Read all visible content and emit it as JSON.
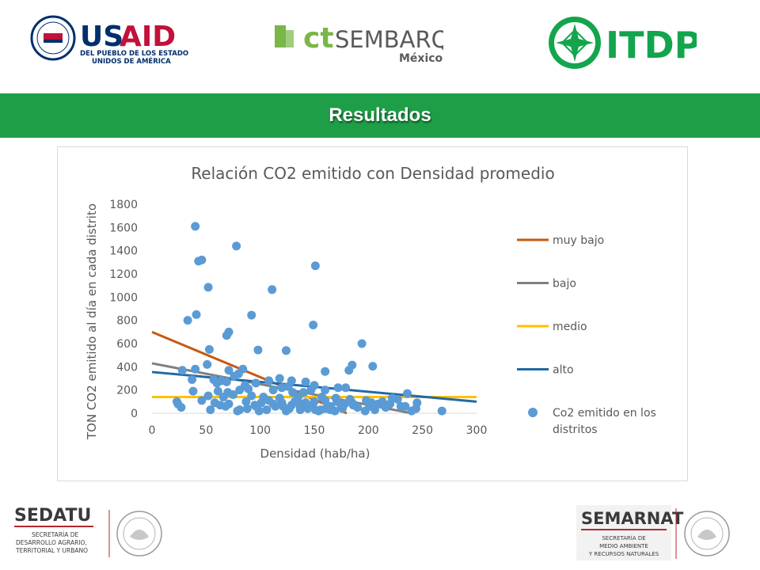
{
  "header": {
    "usaid": {
      "name": "USAID",
      "tagline_1": "DEL PUEBLO DE LOS ESTADOS",
      "tagline_2": "UNIDOS DE AMÉRICA",
      "seal_text": "UNITED STATES AGENCY INTERNATIONAL DEVELOPMENT"
    },
    "cts": {
      "name_ct": "ct",
      "name_rest": "SEMBARQ",
      "sub": "México"
    },
    "itdp": {
      "name": "ITDP"
    },
    "colors": {
      "usaid_red": "#c2113a",
      "usaid_blue": "#002f6c",
      "cts_green": "#7ab648",
      "cts_gray": "#5a5a5a",
      "itdp_green": "#13a54d"
    }
  },
  "banner": {
    "title": "Resultados",
    "color": "#1f9e48"
  },
  "chart_data": {
    "type": "scatter",
    "title": "Relación CO2 emitido con Densidad promedio",
    "xlabel": "Densidad (hab/ha)",
    "ylabel": "TON CO2 emitido al día en cada distrito",
    "xlim": [
      0,
      300
    ],
    "ylim": [
      0,
      1800
    ],
    "xticks": [
      0,
      50,
      100,
      150,
      200,
      250,
      300
    ],
    "yticks": [
      0,
      200,
      400,
      600,
      800,
      1000,
      1200,
      1400,
      1600,
      1800
    ],
    "grid": false,
    "legend_position": "right",
    "series": [
      {
        "name": "muy bajo",
        "kind": "trendline",
        "color": "#c55a11",
        "x": [
          0,
          180
        ],
        "y": [
          700,
          0
        ]
      },
      {
        "name": "bajo",
        "kind": "trendline",
        "color": "#7f7f7f",
        "x": [
          0,
          240
        ],
        "y": [
          430,
          0
        ]
      },
      {
        "name": "medio",
        "kind": "trendline",
        "color": "#ffc000",
        "x": [
          0,
          300
        ],
        "y": [
          140,
          140
        ]
      },
      {
        "name": "alto",
        "kind": "trendline",
        "color": "#1f6aa5",
        "x": [
          0,
          300
        ],
        "y": [
          355,
          100
        ]
      },
      {
        "name": "Co2 emitido en los distritos",
        "kind": "points",
        "color": "#5b9bd5",
        "points": [
          [
            40,
            1610
          ],
          [
            78,
            1440
          ],
          [
            46,
            1320
          ],
          [
            43,
            1310
          ],
          [
            151,
            1270
          ],
          [
            52,
            1085
          ],
          [
            111,
            1065
          ],
          [
            41,
            850
          ],
          [
            92,
            845
          ],
          [
            33,
            800
          ],
          [
            149,
            760
          ],
          [
            71,
            700
          ],
          [
            69,
            670
          ],
          [
            194,
            600
          ],
          [
            53,
            550
          ],
          [
            98,
            545
          ],
          [
            124,
            540
          ],
          [
            204,
            405
          ],
          [
            185,
            415
          ],
          [
            182,
            370
          ],
          [
            160,
            360
          ],
          [
            28,
            370
          ],
          [
            40,
            380
          ],
          [
            51,
            420
          ],
          [
            84,
            380
          ],
          [
            71,
            370
          ],
          [
            80,
            340
          ],
          [
            76,
            320
          ],
          [
            57,
            290
          ],
          [
            37,
            290
          ],
          [
            64,
            280
          ],
          [
            60,
            260
          ],
          [
            69,
            270
          ],
          [
            96,
            260
          ],
          [
            86,
            240
          ],
          [
            150,
            240
          ],
          [
            129,
            280
          ],
          [
            142,
            270
          ],
          [
            118,
            300
          ],
          [
            108,
            280
          ],
          [
            126,
            230
          ],
          [
            120,
            220
          ],
          [
            179,
            220
          ],
          [
            172,
            220
          ],
          [
            160,
            200
          ],
          [
            140,
            180
          ],
          [
            147,
            200
          ],
          [
            130,
            180
          ],
          [
            112,
            200
          ],
          [
            89,
            210
          ],
          [
            81,
            200
          ],
          [
            70,
            180
          ],
          [
            38,
            190
          ],
          [
            61,
            190
          ],
          [
            52,
            150
          ],
          [
            75,
            160
          ],
          [
            66,
            140
          ],
          [
            92,
            150
          ],
          [
            103,
            140
          ],
          [
            118,
            130
          ],
          [
            135,
            140
          ],
          [
            157,
            140
          ],
          [
            170,
            130
          ],
          [
            183,
            120
          ],
          [
            198,
            110
          ],
          [
            213,
            100
          ],
          [
            227,
            120
          ],
          [
            236,
            170
          ],
          [
            245,
            90
          ],
          [
            268,
            20
          ],
          [
            222,
            130
          ],
          [
            209,
            80
          ],
          [
            230,
            60
          ],
          [
            201,
            60
          ],
          [
            190,
            50
          ],
          [
            176,
            40
          ],
          [
            165,
            30
          ],
          [
            154,
            20
          ],
          [
            145,
            60
          ],
          [
            137,
            30
          ],
          [
            127,
            40
          ],
          [
            114,
            60
          ],
          [
            106,
            30
          ],
          [
            96,
            60
          ],
          [
            88,
            40
          ],
          [
            79,
            20
          ],
          [
            68,
            60
          ],
          [
            58,
            90
          ],
          [
            46,
            110
          ],
          [
            24,
            80
          ],
          [
            27,
            50
          ],
          [
            54,
            30
          ],
          [
            81,
            30
          ],
          [
            99,
            20
          ],
          [
            124,
            20
          ],
          [
            151,
            30
          ],
          [
            161,
            40
          ],
          [
            175,
            60
          ],
          [
            186,
            70
          ],
          [
            197,
            20
          ],
          [
            206,
            30
          ],
          [
            216,
            50
          ],
          [
            234,
            60
          ],
          [
            244,
            40
          ],
          [
            240,
            20
          ],
          [
            120,
            90
          ],
          [
            129,
            70
          ],
          [
            139,
            80
          ],
          [
            147,
            60
          ],
          [
            156,
            30
          ],
          [
            165,
            60
          ],
          [
            150,
            100
          ],
          [
            160,
            110
          ],
          [
            108,
            110
          ],
          [
            87,
            100
          ],
          [
            71,
            80
          ],
          [
            63,
            70
          ],
          [
            23,
            100
          ],
          [
            101,
            90
          ],
          [
            95,
            70
          ],
          [
            132,
            100
          ],
          [
            142,
            90
          ],
          [
            171,
            100
          ],
          [
            185,
            90
          ],
          [
            203,
            90
          ],
          [
            220,
            80
          ],
          [
            112,
            80
          ],
          [
            121,
            60
          ],
          [
            137,
            50
          ],
          [
            144,
            40
          ],
          [
            169,
            20
          ],
          [
            178,
            80
          ]
        ]
      }
    ]
  },
  "footer": {
    "sedatu": {
      "name": "SEDATU",
      "line1": "SECRETARÍA DE",
      "line2": "DESARROLLO AGRARIO,",
      "line3": "TERRITORIAL Y URBANO",
      "red": "#b3282d"
    },
    "semarnat": {
      "name": "SEMARNAT",
      "line1": "SECRETARÍA DE",
      "line2": "MEDIO AMBIENTE",
      "line3": "Y RECURSOS NATURALES",
      "red": "#b3282d"
    }
  }
}
